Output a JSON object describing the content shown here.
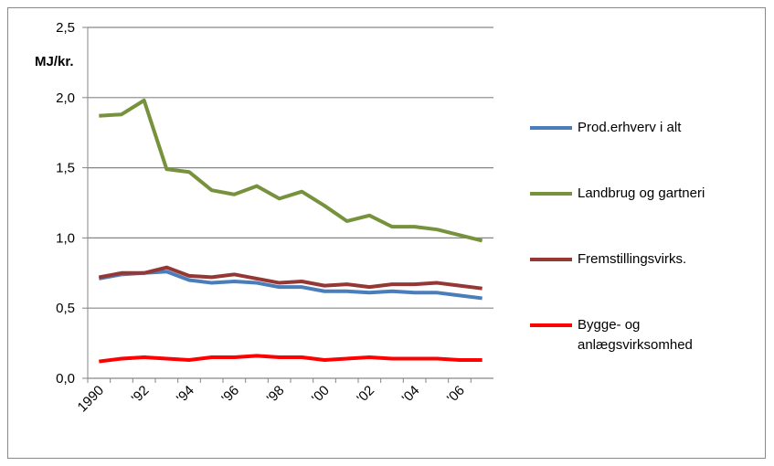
{
  "chart_data": {
    "type": "line",
    "y_label": "MJ/kr.",
    "categories": [
      "1990",
      null,
      "'92",
      null,
      "'94",
      null,
      "'96",
      null,
      "'98",
      null,
      "'00",
      null,
      "'02",
      null,
      "'04",
      null,
      "'06",
      null
    ],
    "series": [
      {
        "name": "Prod.erhverv i alt",
        "color": "#4a7ebb",
        "values": [
          0.71,
          0.74,
          0.75,
          0.76,
          0.7,
          0.68,
          0.69,
          0.68,
          0.65,
          0.65,
          0.62,
          0.62,
          0.61,
          0.62,
          0.61,
          0.61,
          0.59,
          0.57
        ]
      },
      {
        "name": "Landbrug og gartneri",
        "color": "#76923c",
        "values": [
          1.87,
          1.88,
          1.98,
          1.49,
          1.47,
          1.34,
          1.31,
          1.37,
          1.28,
          1.33,
          1.23,
          1.12,
          1.16,
          1.08,
          1.08,
          1.06,
          1.02,
          0.98
        ]
      },
      {
        "name": "Fremstillingsvirks.",
        "color": "#953735",
        "values": [
          0.72,
          0.75,
          0.75,
          0.79,
          0.73,
          0.72,
          0.74,
          0.71,
          0.68,
          0.69,
          0.66,
          0.67,
          0.65,
          0.67,
          0.67,
          0.68,
          0.66,
          0.64
        ]
      },
      {
        "name": "Bygge- og anlægsvirksomhed",
        "color": "#ff0000",
        "values": [
          0.12,
          0.14,
          0.15,
          0.14,
          0.13,
          0.15,
          0.15,
          0.16,
          0.15,
          0.15,
          0.13,
          0.14,
          0.15,
          0.14,
          0.14,
          0.14,
          0.13,
          0.13
        ]
      }
    ],
    "ylim": [
      0,
      2.5
    ],
    "yticks": [
      {
        "value": 0,
        "label": "0,0"
      },
      {
        "value": 0.5,
        "label": "0,5"
      },
      {
        "value": 1,
        "label": "1,0"
      },
      {
        "value": 1.5,
        "label": "1,5"
      },
      {
        "value": 2,
        "label": "2,0"
      },
      {
        "value": 2.5,
        "label": "2,5"
      }
    ],
    "grid": true
  }
}
